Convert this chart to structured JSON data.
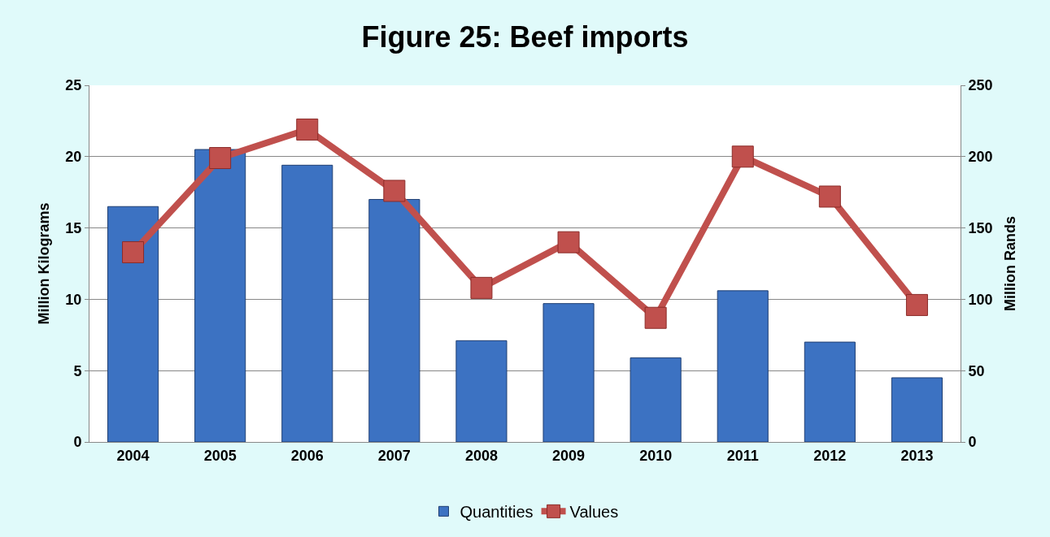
{
  "chart_data": {
    "type": "bar",
    "title": "Figure 25: Beef imports",
    "categories": [
      "2004",
      "2005",
      "2006",
      "2007",
      "2008",
      "2009",
      "2010",
      "2011",
      "2012",
      "2013"
    ],
    "series": [
      {
        "name": "Quantities",
        "color": "#3c72c2",
        "values": [
          16.5,
          20.5,
          19.4,
          17.0,
          7.1,
          9.7,
          5.9,
          10.6,
          7.0,
          4.5
        ]
      },
      {
        "name": "Values",
        "type": "line",
        "axis": "y2",
        "color": "#c0504d",
        "values": [
          133,
          199,
          219,
          176,
          108,
          140,
          87,
          200,
          172,
          96
        ]
      }
    ],
    "ylabel": "Million Kilograms",
    "y2label": "Million Rands",
    "ylim": [
      0,
      25
    ],
    "yticks": [
      0,
      5,
      10,
      15,
      20,
      25
    ],
    "y2lim": [
      0,
      250
    ],
    "y2ticks": [
      0,
      50,
      100,
      150,
      200,
      250
    ],
    "grid": "y",
    "legend": "bottom",
    "marker": "square",
    "line_style": "solid"
  }
}
